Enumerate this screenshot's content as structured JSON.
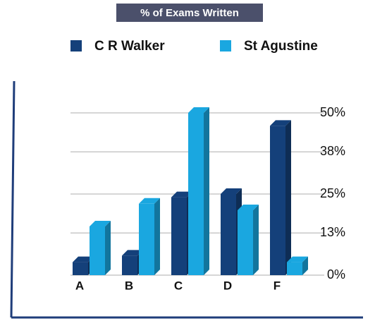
{
  "chart_data": {
    "type": "bar",
    "title": "% of Exams Written",
    "categories": [
      "A",
      "B",
      "C",
      "D",
      "F"
    ],
    "series": [
      {
        "name": "C R Walker",
        "color": "#14407a",
        "values": [
          4,
          6,
          24,
          25,
          46
        ]
      },
      {
        "name": "St Agustine",
        "color": "#1aa7e0",
        "values": [
          15,
          22,
          50,
          20,
          4
        ]
      }
    ],
    "ylim": [
      0,
      50
    ],
    "yticks": [
      {
        "value": 0,
        "label": "0%"
      },
      {
        "value": 13,
        "label": "13%"
      },
      {
        "value": 25,
        "label": "25%"
      },
      {
        "value": 38,
        "label": "38%"
      },
      {
        "value": 50,
        "label": "50%"
      }
    ],
    "grid": true
  }
}
